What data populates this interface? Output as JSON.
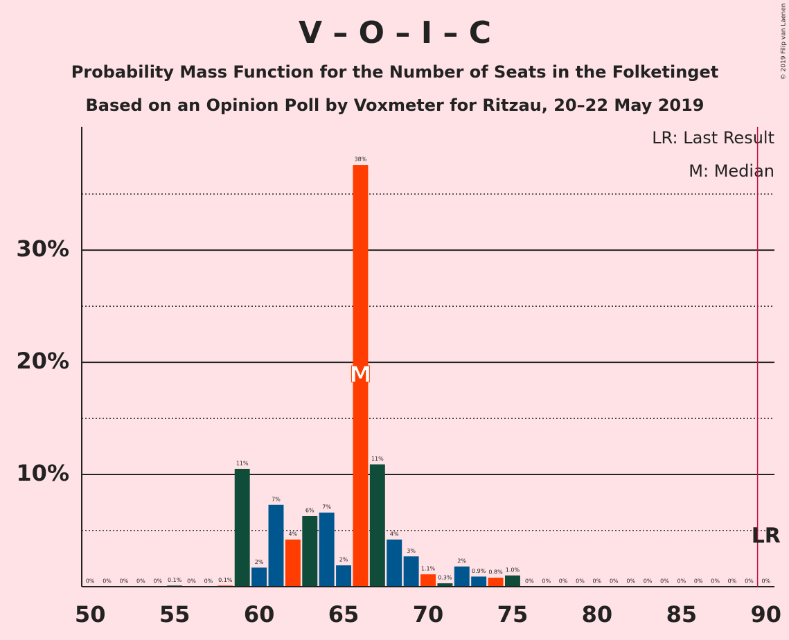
{
  "chart_data": {
    "type": "bar",
    "title": "V – O – I – C",
    "subtitle": "Probability Mass Function for the Number of Seats in the Folketinget",
    "subtitle2": "Based on an Opinion Poll by Voxmeter for Ritzau, 20–22 May 2019",
    "copyright": "© 2019 Filip van Laenen",
    "x": [
      50,
      51,
      52,
      53,
      54,
      55,
      56,
      57,
      58,
      59,
      60,
      61,
      62,
      63,
      64,
      65,
      66,
      67,
      68,
      69,
      70,
      71,
      72,
      73,
      74,
      75,
      76,
      77,
      78,
      79,
      80,
      81,
      82,
      83,
      84,
      85,
      86,
      87,
      88,
      89,
      90
    ],
    "values": [
      0,
      0,
      0,
      0,
      0,
      0.1,
      0,
      0,
      0.1,
      10.5,
      1.7,
      7.3,
      4.2,
      6.3,
      6.6,
      1.9,
      37.6,
      10.9,
      4.2,
      2.7,
      1.1,
      0.3,
      1.8,
      0.9,
      0.8,
      1.0,
      0,
      0,
      0,
      0,
      0,
      0,
      0,
      0,
      0,
      0,
      0,
      0,
      0,
      0,
      0
    ],
    "value_labels": [
      "0%",
      "0%",
      "0%",
      "0%",
      "0%",
      "0.1%",
      "0%",
      "0%",
      "0.1%",
      "11%",
      "2%",
      "7%",
      "4%",
      "6%",
      "7%",
      "2%",
      "38%",
      "11%",
      "4%",
      "3%",
      "1.1%",
      "0.3%",
      "2%",
      "0.9%",
      "0.8%",
      "1.0%",
      "0%",
      "0%",
      "0%",
      "0%",
      "0%",
      "0%",
      "0%",
      "0%",
      "0%",
      "0%",
      "0%",
      "0%",
      "0%",
      "0%",
      "0%"
    ],
    "colors": [
      "#ff3d00",
      "#0f4c3a",
      "#00568f",
      "#00568f",
      "#ff3d00",
      "#0f4c3a",
      "#00568f",
      "#00568f",
      "#ff3d00",
      "#0f4c3a",
      "#00568f",
      "#00568f",
      "#ff3d00",
      "#0f4c3a",
      "#00568f",
      "#00568f",
      "#ff3d00",
      "#0f4c3a",
      "#00568f",
      "#00568f",
      "#ff3d00",
      "#0f4c3a",
      "#00568f",
      "#00568f",
      "#ff3d00",
      "#0f4c3a",
      "#00568f",
      "#00568f",
      "#ff3d00",
      "#0f4c3a",
      "#00568f",
      "#00568f",
      "#ff3d00",
      "#0f4c3a",
      "#00568f",
      "#00568f",
      "#ff3d00",
      "#0f4c3a",
      "#00568f",
      "#00568f",
      "#ff3d00"
    ],
    "xlim": [
      49.5,
      90.5
    ],
    "xticks": [
      50,
      55,
      60,
      65,
      70,
      75,
      80,
      85,
      90
    ],
    "ylim": [
      0,
      41
    ],
    "yticks": [
      {
        "value": 10,
        "label": "10%"
      },
      {
        "value": 20,
        "label": "20%"
      },
      {
        "value": 30,
        "label": "30%"
      }
    ],
    "minor_gridlines": [
      5,
      15,
      25,
      35
    ],
    "median": 66,
    "median_label": "M",
    "last_result": 90,
    "last_result_label": "LR",
    "legend": [
      "LR: Last Result",
      "M: Median"
    ]
  }
}
